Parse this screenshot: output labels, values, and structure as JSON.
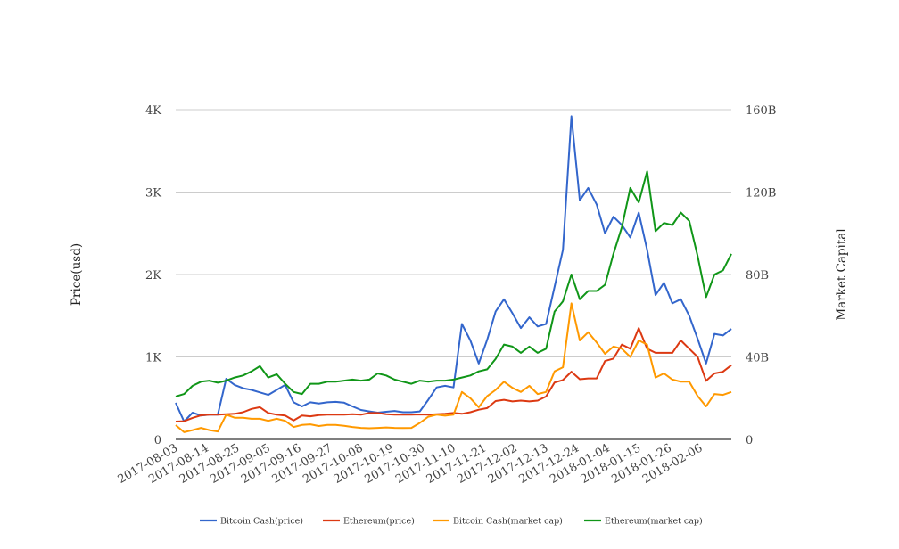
{
  "chart_data": {
    "type": "line",
    "title": "",
    "xlabel": "",
    "ylabel": "Price(usd)",
    "ylabel_right": "Market Capital",
    "x_unit": "days since 2017-08-03",
    "x": [
      0,
      3,
      6,
      9,
      12,
      15,
      18,
      21,
      24,
      27,
      30,
      33,
      36,
      39,
      42,
      45,
      48,
      51,
      54,
      57,
      60,
      63,
      66,
      69,
      72,
      75,
      78,
      81,
      84,
      87,
      90,
      93,
      96,
      99,
      102,
      105,
      108,
      111,
      114,
      117,
      120,
      123,
      126,
      129,
      132,
      135,
      138,
      141,
      144,
      147,
      150,
      153,
      156,
      159,
      162,
      165,
      168,
      171,
      174,
      177,
      180,
      183,
      186,
      189,
      192,
      195,
      198
    ],
    "xlim": [
      0,
      198
    ],
    "x_ticks": [
      "2017-08-03",
      "2017-08-14",
      "2017-08-25",
      "2017-09-05",
      "2017-09-16",
      "2017-09-27",
      "2017-10-08",
      "2017-10-19",
      "2017-10-30",
      "2017-11-10",
      "2017-11-21",
      "2017-12-02",
      "2017-12-13",
      "2017-12-24",
      "2018-01-04",
      "2018-01-15",
      "2018-01-26",
      "2018-02-06"
    ],
    "x_tick_step_days": 11,
    "ylim": [
      0,
      4000
    ],
    "y_ticks": [
      "0",
      "1K",
      "2K",
      "3K",
      "4K"
    ],
    "ylim_right": [
      0,
      160
    ],
    "y_ticks_right": [
      "0",
      "40B",
      "80B",
      "120B",
      "160B"
    ],
    "grid": true,
    "legend_position": "bottom",
    "series": [
      {
        "name": "Bitcoin Cash(price)",
        "axis": "left",
        "color": "#3366cc",
        "values": [
          443,
          216,
          324,
          290,
          300,
          300,
          735,
          660,
          620,
          600,
          570,
          540,
          600,
          660,
          450,
          400,
          450,
          435,
          450,
          455,
          445,
          400,
          357,
          340,
          324,
          335,
          345,
          330,
          330,
          340,
          480,
          630,
          650,
          630,
          1400,
          1200,
          920,
          1210,
          1550,
          1700,
          1530,
          1350,
          1480,
          1370,
          1400,
          1850,
          2300,
          3920,
          2900,
          3050,
          2850,
          2500,
          2700,
          2600,
          2450,
          2750,
          2300,
          1750,
          1900,
          1650,
          1700,
          1500,
          1220,
          920,
          1280,
          1260,
          1340
        ]
      },
      {
        "name": "Ethereum(price)",
        "axis": "left",
        "color": "#dc3912",
        "values": [
          216,
          220,
          260,
          292,
          300,
          300,
          305,
          310,
          330,
          370,
          390,
          320,
          300,
          290,
          230,
          290,
          280,
          295,
          300,
          300,
          300,
          305,
          300,
          320,
          320,
          305,
          300,
          300,
          300,
          303,
          300,
          305,
          310,
          320,
          310,
          330,
          360,
          380,
          465,
          480,
          460,
          470,
          460,
          470,
          520,
          690,
          720,
          820,
          730,
          740,
          740,
          950,
          980,
          1150,
          1100,
          1350,
          1100,
          1050,
          1050,
          1050,
          1200,
          1100,
          1000,
          710,
          800,
          820,
          900
        ]
      },
      {
        "name": "Bitcoin Cash(market cap)",
        "axis": "right",
        "color": "#ff9900",
        "values": [
          6.9,
          3.5,
          4.5,
          5.6,
          4.5,
          3.8,
          12,
          10.5,
          10.5,
          10,
          10,
          9,
          10,
          9,
          6,
          7,
          7.3,
          6.5,
          7,
          7,
          6.6,
          6,
          5.6,
          5.4,
          5.6,
          5.8,
          5.6,
          5.5,
          5.6,
          8,
          11,
          12,
          11.5,
          12,
          23,
          20,
          15.6,
          21,
          24,
          28,
          25,
          23,
          26,
          22,
          23,
          33,
          35,
          66,
          48,
          52,
          47,
          41.5,
          45,
          44,
          40,
          48,
          46,
          30,
          32,
          29,
          28,
          28,
          21,
          16,
          22,
          21.6,
          23
        ]
      },
      {
        "name": "Ethereum(market cap)",
        "axis": "right",
        "color": "#109618",
        "values": [
          20.8,
          22,
          26,
          28,
          28.5,
          27.5,
          28.5,
          30,
          31,
          33,
          35.5,
          30,
          31.6,
          27,
          23,
          22,
          27,
          27,
          28,
          28,
          28.5,
          29,
          28.5,
          29,
          32,
          31,
          29,
          28,
          27,
          28.5,
          28,
          28.5,
          28.5,
          29,
          30,
          31,
          33,
          34,
          39,
          46,
          45,
          42,
          45,
          42,
          44,
          62,
          67,
          80,
          68,
          72,
          72,
          75,
          90,
          103,
          122,
          115,
          130,
          101,
          105,
          104,
          110,
          106,
          89,
          69,
          80,
          82,
          90
        ]
      }
    ]
  }
}
